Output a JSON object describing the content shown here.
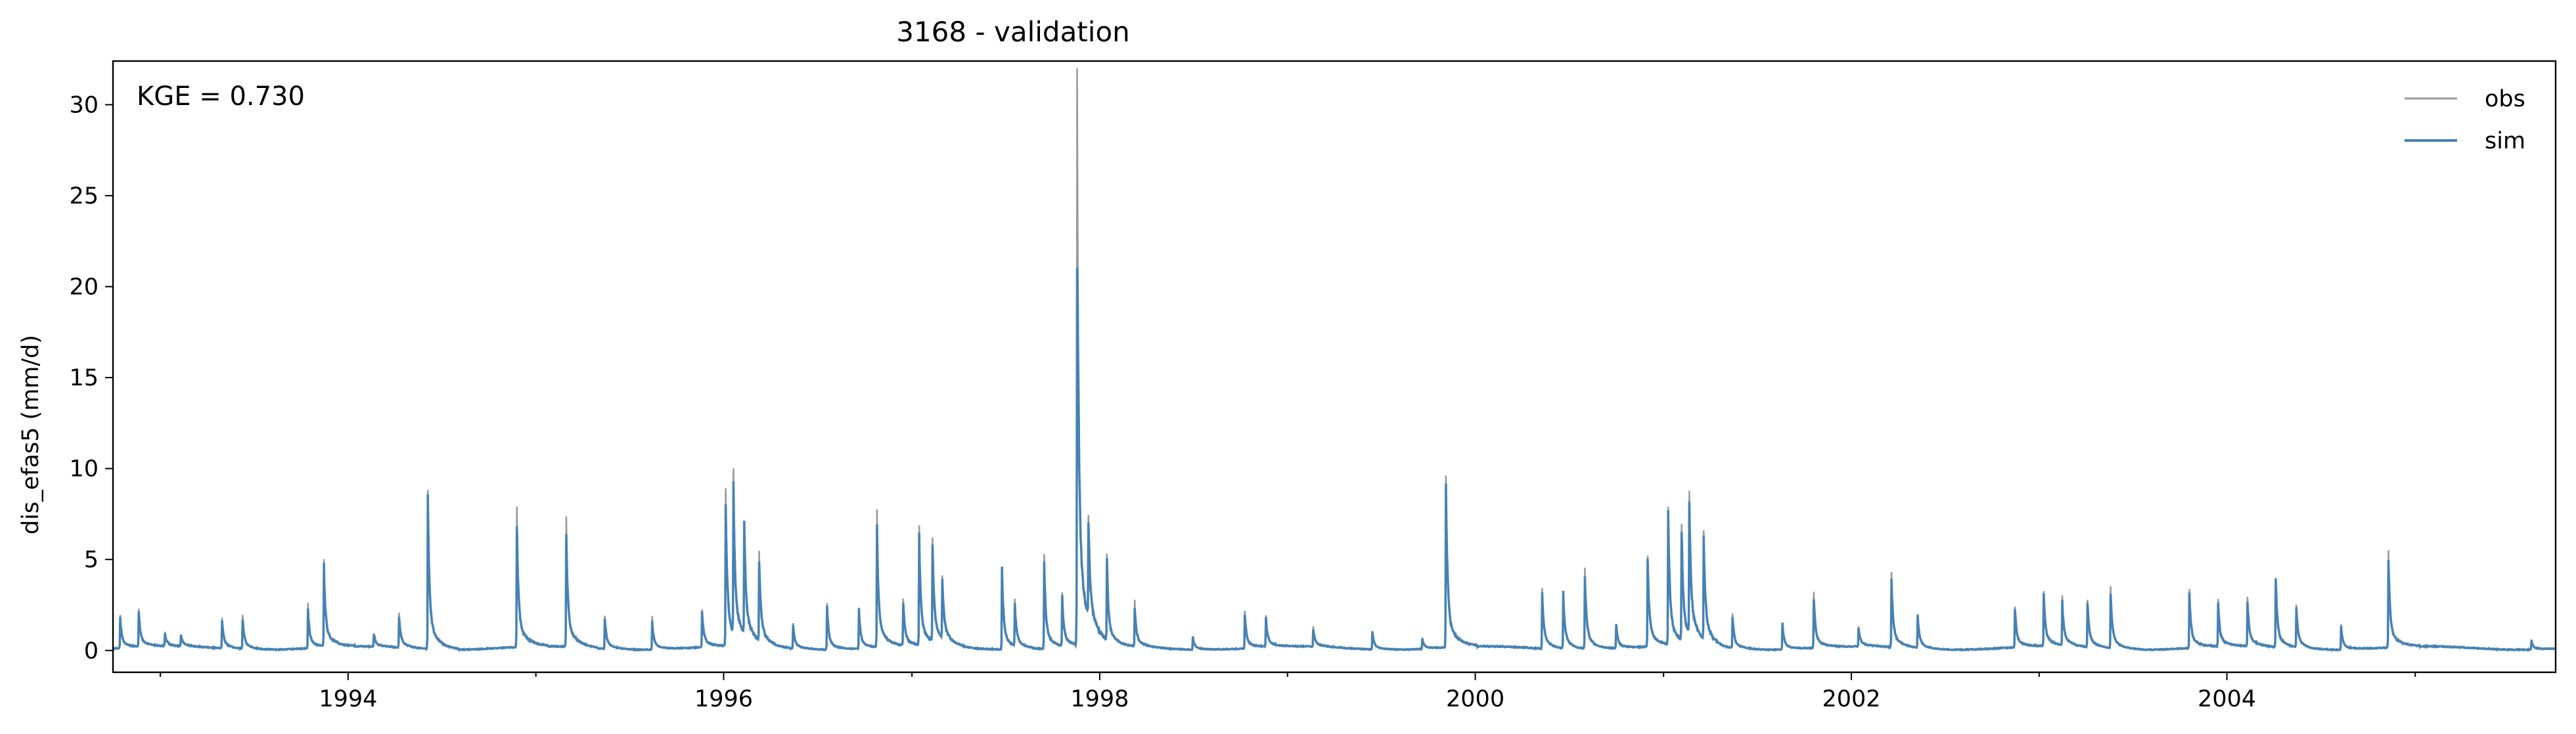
{
  "chart_data": {
    "type": "line",
    "title": "3168 - validation",
    "xlabel": "",
    "ylabel": "dis_efas5 (mm/d)",
    "annotation": "KGE = 0.730",
    "xlim": [
      "1992-10-01",
      "2005-10-01"
    ],
    "ylim": [
      -1.2,
      32.4
    ],
    "yticks": [
      0,
      5,
      10,
      15,
      20,
      25,
      30
    ],
    "xticks": [
      "1994",
      "1996",
      "1998",
      "2000",
      "2002",
      "2004"
    ],
    "legend": {
      "position": "top-right"
    },
    "colors": {
      "obs": "#999999",
      "sim": "#4682b4"
    },
    "events": [
      [
        "1992-10-15",
        2.0
      ],
      [
        "1992-11-20",
        2.3
      ],
      [
        "1993-01-10",
        1.0
      ],
      [
        "1993-02-10",
        0.9
      ],
      [
        "1993-05-01",
        1.8
      ],
      [
        "1993-06-10",
        1.9
      ],
      [
        "1993-10-15",
        2.5
      ],
      [
        "1993-11-15",
        5.0
      ],
      [
        "1994-02-20",
        1.0
      ],
      [
        "1994-04-10",
        2.1
      ],
      [
        "1994-06-05",
        9.0
      ],
      [
        "1994-11-25",
        7.7
      ],
      [
        "1995-03-01",
        7.1
      ],
      [
        "1995-05-15",
        1.9
      ],
      [
        "1995-08-15",
        1.8
      ],
      [
        "1995-11-20",
        2.4
      ],
      [
        "1996-01-05",
        9.0
      ],
      [
        "1996-01-20",
        8.9
      ],
      [
        "1996-02-10",
        6.7
      ],
      [
        "1996-03-10",
        5.2
      ],
      [
        "1996-05-15",
        1.5
      ],
      [
        "1996-07-20",
        2.6
      ],
      [
        "1996-09-20",
        2.4
      ],
      [
        "1996-10-25",
        7.3
      ],
      [
        "1996-12-15",
        2.8
      ],
      [
        "1997-01-15",
        6.7
      ],
      [
        "1997-02-10",
        6.1
      ],
      [
        "1997-03-01",
        3.8
      ],
      [
        "1997-06-25",
        4.8
      ],
      [
        "1997-07-20",
        2.5
      ],
      [
        "1997-09-15",
        5.3
      ],
      [
        "1997-10-20",
        3.1
      ],
      [
        "1997-11-18",
        30.9
      ],
      [
        "1997-12-10",
        6.0
      ],
      [
        "1998-01-15",
        4.9
      ],
      [
        "1998-03-10",
        2.6
      ],
      [
        "1998-07-01",
        0.8
      ],
      [
        "1998-10-10",
        2.2
      ],
      [
        "1998-11-20",
        1.9
      ],
      [
        "1999-02-20",
        1.3
      ],
      [
        "1999-06-15",
        1.1
      ],
      [
        "1999-09-20",
        0.7
      ],
      [
        "1999-11-05",
        9.8
      ],
      [
        "2000-05-10",
        3.5
      ],
      [
        "2000-06-20",
        3.4
      ],
      [
        "2000-08-01",
        4.6
      ],
      [
        "2000-10-01",
        1.5
      ],
      [
        "2000-12-01",
        5.5
      ],
      [
        "2001-01-10",
        8.0
      ],
      [
        "2001-02-05",
        7.0
      ],
      [
        "2001-02-20",
        8.4
      ],
      [
        "2001-03-20",
        6.3
      ],
      [
        "2001-05-15",
        2.0
      ],
      [
        "2001-08-20",
        1.6
      ],
      [
        "2001-10-20",
        3.2
      ],
      [
        "2002-01-15",
        1.4
      ],
      [
        "2002-03-20",
        4.2
      ],
      [
        "2002-05-10",
        2.0
      ],
      [
        "2002-11-15",
        2.5
      ],
      [
        "2003-01-10",
        3.4
      ],
      [
        "2003-02-15",
        2.8
      ],
      [
        "2003-04-05",
        2.9
      ],
      [
        "2003-05-20",
        3.5
      ],
      [
        "2003-10-20",
        3.5
      ],
      [
        "2003-12-15",
        2.8
      ],
      [
        "2004-02-10",
        3.0
      ],
      [
        "2004-04-05",
        4.1
      ],
      [
        "2004-05-15",
        2.5
      ],
      [
        "2004-08-10",
        1.4
      ],
      [
        "2004-11-10",
        5.4
      ],
      [
        "2005-08-15",
        0.6
      ],
      [
        "2005-10-20",
        0.5
      ]
    ]
  }
}
